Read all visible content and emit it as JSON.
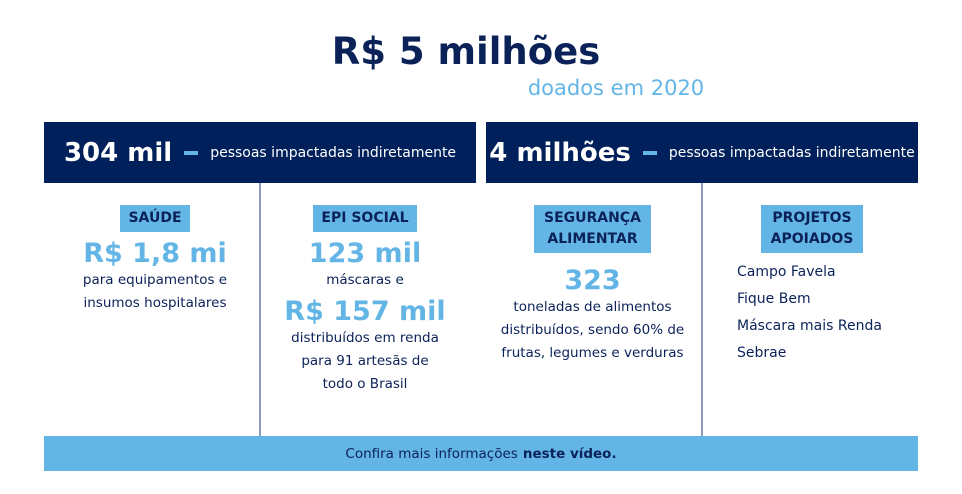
{
  "title": "R$ 5 milhões",
  "subtitle": "doados em 2020",
  "colors": {
    "navy": "#00205b",
    "accent": "#63b5e6"
  },
  "left_header": {
    "value": "304 mil",
    "label": "pessoas impactadas indiretamente"
  },
  "right_header": {
    "value": "4 milhões",
    "label": "pessoas impactadas indiretamente"
  },
  "saude": {
    "tag": "SAÚDE",
    "value": "R$ 1,8 mi",
    "line1": "para equipamentos e",
    "line2": "insumos hospitalares"
  },
  "epi": {
    "tag": "EPI SOCIAL",
    "value1": "123 mil",
    "text1": "máscaras e",
    "value2": "R$ 157 mil",
    "line1": "distribuídos em renda",
    "line2": "para 91 artesãs de",
    "line3": "todo o Brasil"
  },
  "seguranca": {
    "tag_line1": "SEGURANÇA",
    "tag_line2": "ALIMENTAR",
    "value": "323",
    "line1": "toneladas de alimentos",
    "line2": "distribuídos, sendo 60% de",
    "line3": "frutas, legumes e verduras"
  },
  "projetos": {
    "tag_line1": "PROJETOS",
    "tag_line2": "APOIADOS",
    "items": [
      "Campo Favela",
      "Fique Bem",
      "Máscara mais Renda",
      "Sebrae"
    ]
  },
  "footer": {
    "text": "Confira mais informações",
    "link": "neste vídeo."
  }
}
